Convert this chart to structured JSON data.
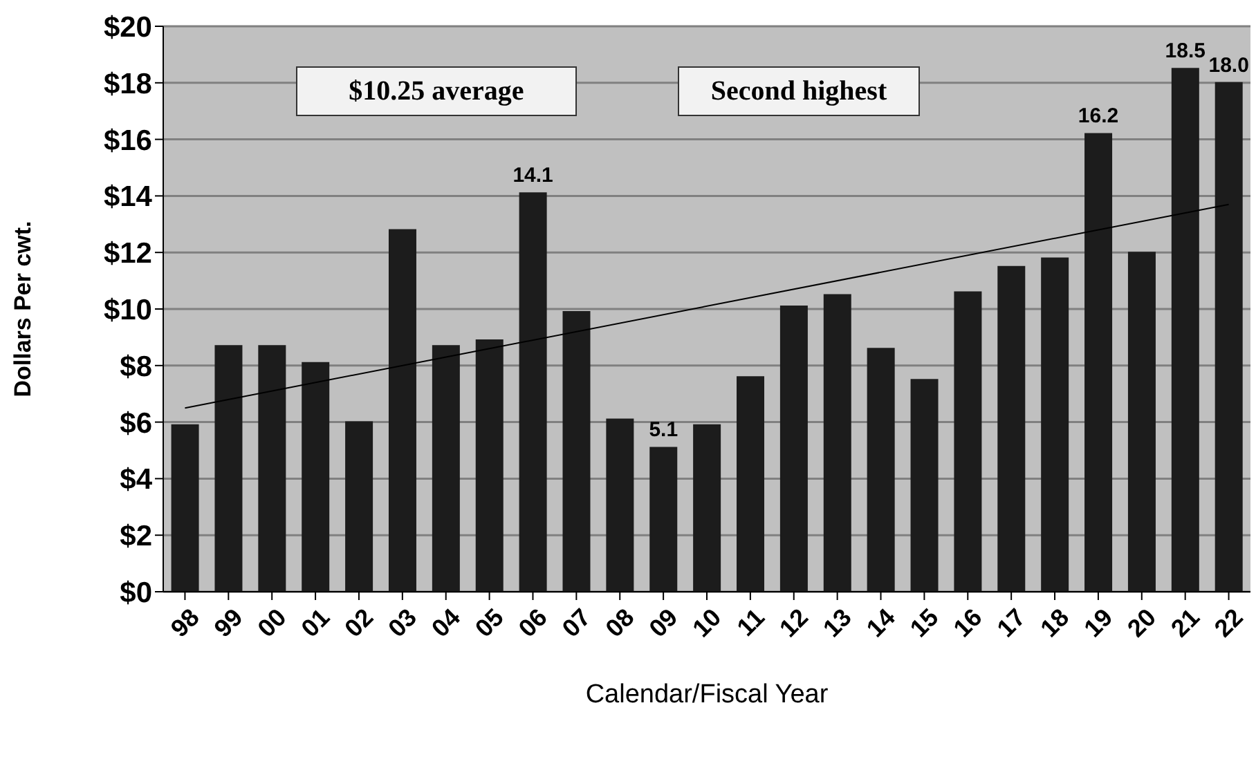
{
  "chart_data": {
    "type": "bar",
    "categories": [
      "98",
      "99",
      "00",
      "01",
      "02",
      "03",
      "04",
      "05",
      "06",
      "07",
      "08",
      "09",
      "10",
      "11",
      "12",
      "13",
      "14",
      "15",
      "16",
      "17",
      "18",
      "19",
      "20",
      "21",
      "22"
    ],
    "series": [
      {
        "color": "#1c1c1c",
        "values": [
          5.9,
          8.7,
          8.7,
          8.1,
          6.0,
          12.8,
          8.7,
          8.9,
          14.1,
          9.9,
          6.1,
          5.1,
          5.9,
          7.6,
          10.1,
          10.5,
          8.6,
          7.5,
          10.6,
          11.5,
          11.8,
          16.2,
          12.0,
          18.5,
          18.0
        ],
        "value_labels": [
          null,
          null,
          null,
          null,
          null,
          null,
          null,
          null,
          "14.1",
          null,
          null,
          "5.1",
          null,
          null,
          null,
          null,
          null,
          null,
          null,
          null,
          null,
          "16.2",
          null,
          "18.5",
          "18.0"
        ]
      },
      {
        "type": "line",
        "x": [
          "98",
          "22"
        ],
        "values": [
          6.5,
          13.7
        ],
        "color": "#000000"
      }
    ],
    "xlabel": "Calendar/Fiscal Year",
    "ylabel": "Dollars Per cwt.",
    "ylim": [
      0,
      20
    ],
    "yticks": [
      {
        "value": 0,
        "label": "$0"
      },
      {
        "value": 2,
        "label": "$2"
      },
      {
        "value": 4,
        "label": "$4"
      },
      {
        "value": 6,
        "label": "$6"
      },
      {
        "value": 8,
        "label": "$8"
      },
      {
        "value": 10,
        "label": "$10"
      },
      {
        "value": 12,
        "label": "$12"
      },
      {
        "value": 14,
        "label": "$14"
      },
      {
        "value": 16,
        "label": "$16"
      },
      {
        "value": 18,
        "label": "$18"
      },
      {
        "value": 20,
        "label": "$20"
      }
    ],
    "grid": "y",
    "marker": "none",
    "annotations": [
      "$10.25 average",
      "Second highest"
    ]
  }
}
